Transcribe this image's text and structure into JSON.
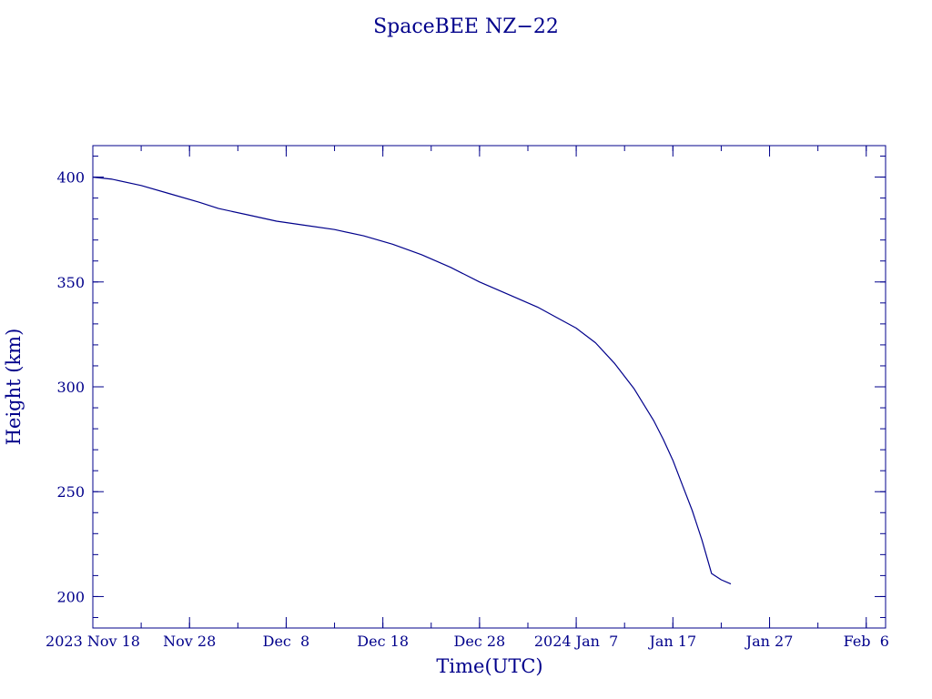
{
  "chart_data": {
    "type": "line",
    "title": "SpaceBEE NZ−22",
    "xlabel": "Time(UTC)",
    "ylabel": "Height (km)",
    "color": "#00008b",
    "grid": false,
    "legend": "none",
    "xlim": [
      "2023-11-18",
      "2024-02-08"
    ],
    "ylim": [
      185,
      415
    ],
    "xtick_labels": [
      {
        "date": "2023-11-18",
        "label": "2023 Nov 18"
      },
      {
        "date": "2023-11-28",
        "label": "Nov 28"
      },
      {
        "date": "2023-12-08",
        "label": "Dec  8"
      },
      {
        "date": "2023-12-18",
        "label": "Dec 18"
      },
      {
        "date": "2023-12-28",
        "label": "Dec 28"
      },
      {
        "date": "2024-01-07",
        "label": "2024 Jan  7"
      },
      {
        "date": "2024-01-17",
        "label": "Jan 17"
      },
      {
        "date": "2024-01-27",
        "label": "Jan 27"
      },
      {
        "date": "2024-02-06",
        "label": "Feb  6"
      }
    ],
    "ytick_labels": [
      "200",
      "250",
      "300",
      "350",
      "400"
    ],
    "series": [
      {
        "x": [
          "2023-11-18",
          "2023-11-20",
          "2023-11-23",
          "2023-11-26",
          "2023-11-29",
          "2023-12-01",
          "2023-12-04",
          "2023-12-07",
          "2023-12-10",
          "2023-12-13",
          "2023-12-16",
          "2023-12-19",
          "2023-12-22",
          "2023-12-25",
          "2023-12-28",
          "2023-12-31",
          "2024-01-03",
          "2024-01-05",
          "2024-01-07",
          "2024-01-09",
          "2024-01-11",
          "2024-01-13",
          "2024-01-15",
          "2024-01-16",
          "2024-01-17",
          "2024-01-18",
          "2024-01-19",
          "2024-01-20",
          "2024-01-21",
          "2024-01-22",
          "2024-01-23"
        ],
        "y": [
          400,
          399,
          396,
          392,
          388,
          385,
          382,
          379,
          377,
          375,
          372,
          368,
          363,
          357,
          350,
          344,
          338,
          333,
          328,
          321,
          311,
          299,
          284,
          275,
          265,
          253,
          241,
          227,
          211,
          208,
          206
        ]
      }
    ]
  }
}
